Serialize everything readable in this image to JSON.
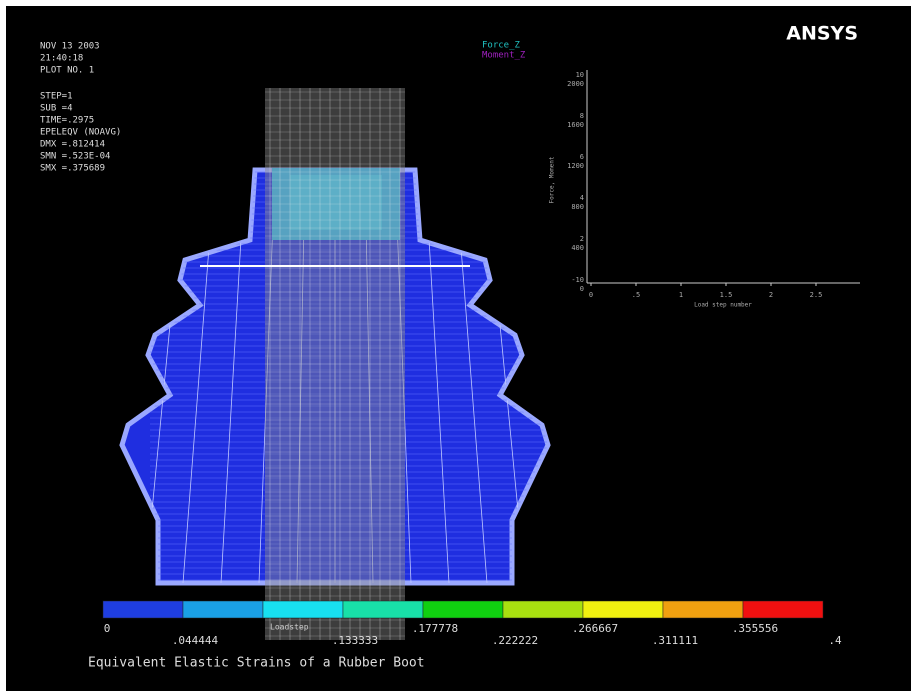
{
  "header": {
    "info": [
      "NOV 13 2003",
      "21:40:18",
      "PLOT NO.   1"
    ],
    "solution": [
      "STEP=1",
      "SUB =4",
      "TIME=.2975",
      "EPELEQV  (NOAVG)",
      "DMX =.812414",
      "SMN =.523E-04",
      "SMX =.375689"
    ],
    "logo": "ANSYS"
  },
  "inset": {
    "legend": [
      {
        "name": "Force_Z",
        "color": "#20c0c0"
      },
      {
        "name": "Moment_Z",
        "color": "#a020c0"
      }
    ],
    "y_label": "Force, Moment",
    "x_label": "Load step number",
    "y_ticks_outer": [
      "10",
      "8",
      "6",
      "4",
      "2",
      "-10"
    ],
    "y_ticks_inner": [
      "2000",
      "1600",
      "1200",
      "800",
      "400",
      "0"
    ],
    "x_ticks": [
      "0",
      ".5",
      "1",
      "1.5",
      "2",
      "2.5"
    ]
  },
  "legend": {
    "colors": [
      "#1f3ee0",
      "#1aa0e6",
      "#18e0f0",
      "#18e0a8",
      "#10d010",
      "#a8e010",
      "#f0f010",
      "#f0a010",
      "#f01010"
    ],
    "labels": [
      "0",
      ".044444",
      null,
      ".133333",
      ".177778",
      ".222222",
      ".266667",
      ".311111",
      ".355556",
      ".4"
    ],
    "overlay": "Loadstep"
  },
  "caption": "Equivalent Elastic Strains of a Rubber Boot"
}
